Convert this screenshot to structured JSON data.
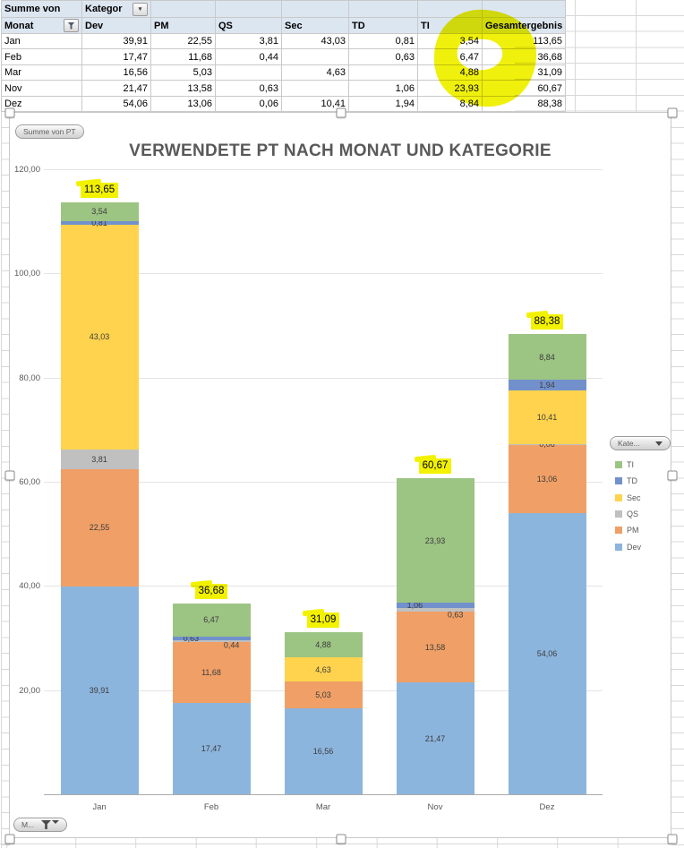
{
  "pivot_table": {
    "value_field_label": "Summe von",
    "column_field_label": "Kategor",
    "row_field_label": "Monat",
    "dropdown_glyph": "▾",
    "columns": [
      "Dev",
      "PM",
      "QS",
      "Sec",
      "TD",
      "TI",
      "Gesamtergebnis"
    ],
    "rows": [
      {
        "month": "Jan",
        "cells": [
          "39,91",
          "22,55",
          "3,81",
          "43,03",
          "0,81",
          "3,54",
          "113,65"
        ]
      },
      {
        "month": "Feb",
        "cells": [
          "17,47",
          "11,68",
          "0,44",
          "",
          "0,63",
          "6,47",
          "36,68"
        ]
      },
      {
        "month": "Mar",
        "cells": [
          "16,56",
          "5,03",
          "",
          "4,63",
          "",
          "4,88",
          "31,09"
        ]
      },
      {
        "month": "Nov",
        "cells": [
          "21,47",
          "13,58",
          "0,63",
          "",
          "1,06",
          "23,93",
          "60,67"
        ]
      },
      {
        "month": "Dez",
        "cells": [
          "54,06",
          "13,06",
          "0,06",
          "10,41",
          "1,94",
          "8,84",
          "88,38"
        ]
      }
    ]
  },
  "chart": {
    "title": "VERWENDETE PT NACH MONAT UND KATEGORIE",
    "buttons": {
      "value": "Summe von PT",
      "legend": "Kate...",
      "axis": "M..."
    },
    "legend_items": [
      {
        "label": "TI",
        "color": "#9CC483"
      },
      {
        "label": "TD",
        "color": "#7291CC"
      },
      {
        "label": "Sec",
        "color": "#FFD34D"
      },
      {
        "label": "QS",
        "color": "#C0C0C0"
      },
      {
        "label": "PM",
        "color": "#F0A066"
      },
      {
        "label": "Dev",
        "color": "#8CB5DE"
      }
    ],
    "y_ticks": [
      {
        "value": 120,
        "label": "120,00"
      },
      {
        "value": 100,
        "label": "100,00"
      },
      {
        "value": 80,
        "label": "80,00"
      },
      {
        "value": 60,
        "label": "60,00"
      },
      {
        "value": 40,
        "label": "40,00"
      },
      {
        "value": 20,
        "label": "20,00"
      }
    ]
  },
  "chart_data": {
    "type": "bar",
    "stacked": true,
    "title": "VERWENDETE PT NACH MONAT UND KATEGORIE",
    "categories": [
      "Jan",
      "Feb",
      "Mar",
      "Nov",
      "Dez"
    ],
    "series": [
      {
        "name": "Dev",
        "color": "#8CB5DE",
        "values": [
          39.91,
          17.47,
          16.56,
          21.47,
          54.06
        ]
      },
      {
        "name": "PM",
        "color": "#F0A066",
        "values": [
          22.55,
          11.68,
          5.03,
          13.58,
          13.06
        ]
      },
      {
        "name": "QS",
        "color": "#C0C0C0",
        "values": [
          3.81,
          0.44,
          null,
          0.63,
          0.06
        ],
        "label_shift": [
          null,
          "r",
          null,
          "r",
          null
        ]
      },
      {
        "name": "Sec",
        "color": "#FFD34D",
        "values": [
          43.03,
          null,
          4.63,
          null,
          10.41
        ]
      },
      {
        "name": "TD",
        "color": "#7291CC",
        "values": [
          0.81,
          0.63,
          null,
          1.06,
          1.94
        ],
        "label_shift": [
          null,
          "l",
          null,
          "l",
          null
        ]
      },
      {
        "name": "TI",
        "color": "#9CC483",
        "values": [
          3.54,
          6.47,
          4.88,
          23.93,
          8.84
        ]
      }
    ],
    "totals": [
      113.65,
      36.68,
      31.09,
      60.67,
      88.38
    ],
    "ylim": [
      0,
      120
    ],
    "grid": true,
    "legend_position": "right",
    "decimal_separator": ","
  },
  "colors": {
    "highlight": "#F2F200",
    "header_fill": "#DCE6F1",
    "title_text": "#595959"
  }
}
